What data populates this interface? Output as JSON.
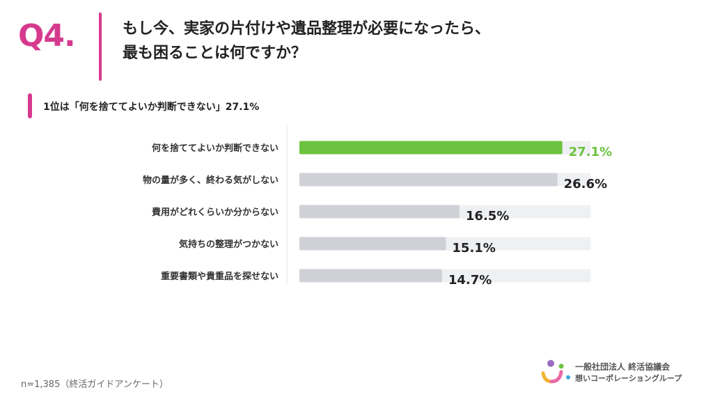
{
  "header": {
    "q_number": "Q4.",
    "question_line1": "もし今、実家の片付けや遺品整理が必要になったら、",
    "question_line2": "最も困ることは何ですか？"
  },
  "subheading": "1位は「何を捨ててよいか判断できない」27.1%",
  "chart_data": {
    "type": "bar",
    "orientation": "horizontal",
    "categories": [
      "何を捨ててよいか判断できない",
      "物の量が多く、終わる気がしない",
      "費用がどれくらいか分からない",
      "気持ちの整理がつかない",
      "重要書類や貴重品を探せない"
    ],
    "values": [
      27.1,
      26.6,
      16.5,
      15.1,
      14.7
    ],
    "value_labels": [
      "27.1%",
      "26.6%",
      "16.5%",
      "15.1%",
      "14.7%"
    ],
    "unit": "%",
    "xlim": [
      0,
      30
    ],
    "highlight_index": 0,
    "colors": {
      "highlight": "#6cc23f",
      "bar": "#cfd1d6",
      "track": "#eef0f3",
      "label": "#222222"
    },
    "grid": false,
    "legend": "none"
  },
  "footnote": "n=1,385（終活ガイドアンケート）",
  "logo": {
    "org_line1": "一般社団法人 終活協議会",
    "org_line2": "想いコーポレーショングループ",
    "colors": [
      "#9b6bc4",
      "#6cc23f",
      "#f2b233",
      "#e86aa6",
      "#3aa9d9"
    ]
  }
}
